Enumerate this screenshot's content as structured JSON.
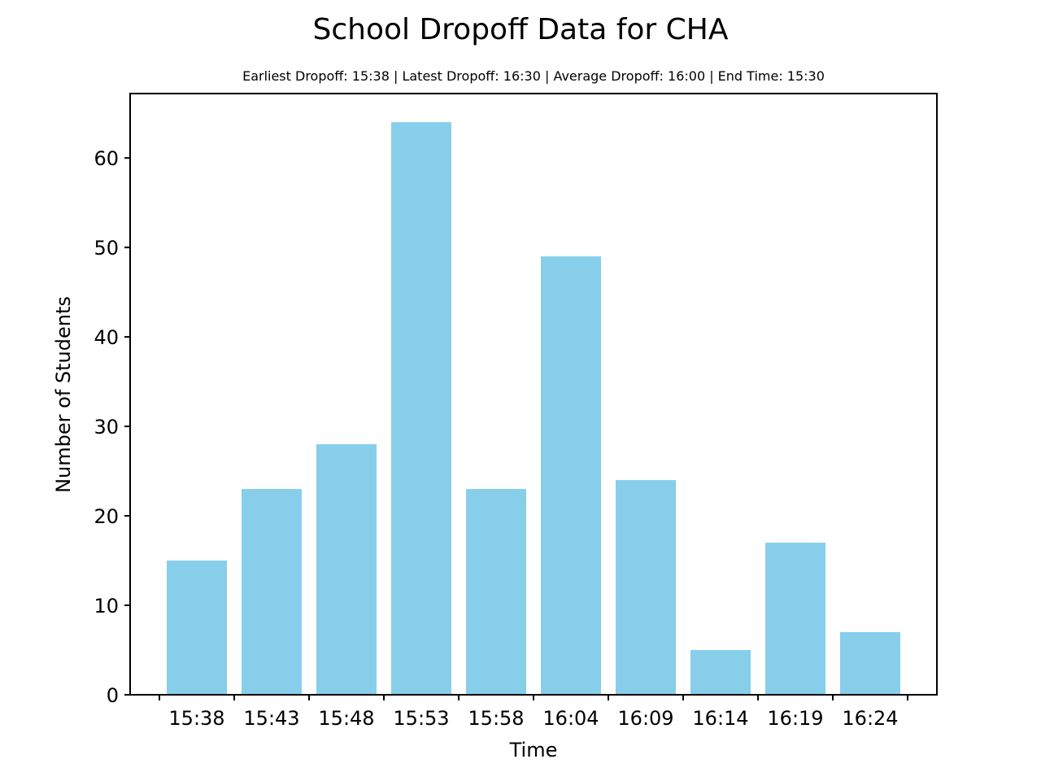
{
  "chart_data": {
    "type": "bar",
    "title": "School Dropoff Data for CHA",
    "subtitle": "Earliest Dropoff: 15:38 | Latest Dropoff: 16:30 | Average Dropoff: 16:00 | End Time: 15:30",
    "xlabel": "Time",
    "ylabel": "Number of Students",
    "categories": [
      "15:38",
      "15:43",
      "15:48",
      "15:53",
      "15:58",
      "16:04",
      "16:09",
      "16:14",
      "16:19",
      "16:24"
    ],
    "values": [
      15,
      23,
      28,
      64,
      23,
      49,
      24,
      5,
      17,
      7
    ],
    "ylim": [
      0,
      67.2
    ],
    "yticks": [
      0,
      10,
      20,
      30,
      40,
      50,
      60
    ],
    "grid": false,
    "bar_color": "#87ceeb",
    "legend": "none"
  }
}
